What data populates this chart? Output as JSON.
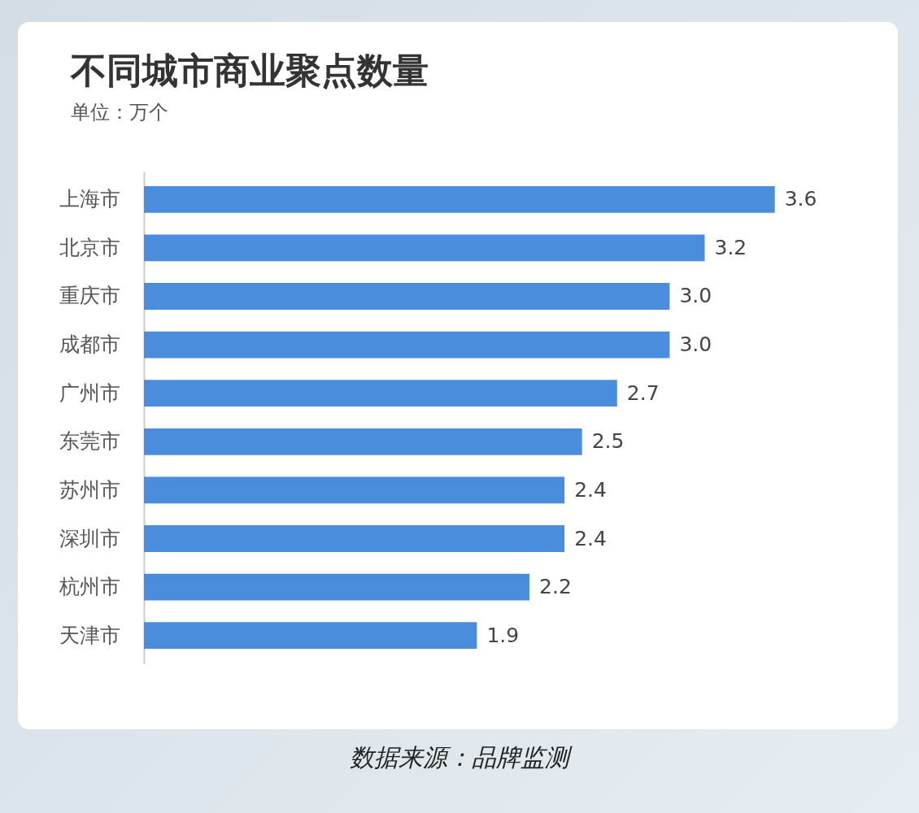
{
  "chart_data": {
    "type": "bar",
    "orientation": "horizontal",
    "title": "不同城市商业聚点数量",
    "subtitle": "单位：万个",
    "categories": [
      "上海市",
      "北京市",
      "重庆市",
      "成都市",
      "广州市",
      "东莞市",
      "苏州市",
      "深圳市",
      "杭州市",
      "天津市"
    ],
    "values": [
      3.6,
      3.2,
      3.0,
      3.0,
      2.7,
      2.5,
      2.4,
      2.4,
      2.2,
      1.9
    ],
    "value_labels": [
      "3.6",
      "3.2",
      "3.0",
      "3.0",
      "2.7",
      "2.5",
      "2.4",
      "2.4",
      "2.2",
      "1.9"
    ],
    "color": "#4a8ddc",
    "annotations": [
      "数据来源：品牌监测"
    ]
  }
}
